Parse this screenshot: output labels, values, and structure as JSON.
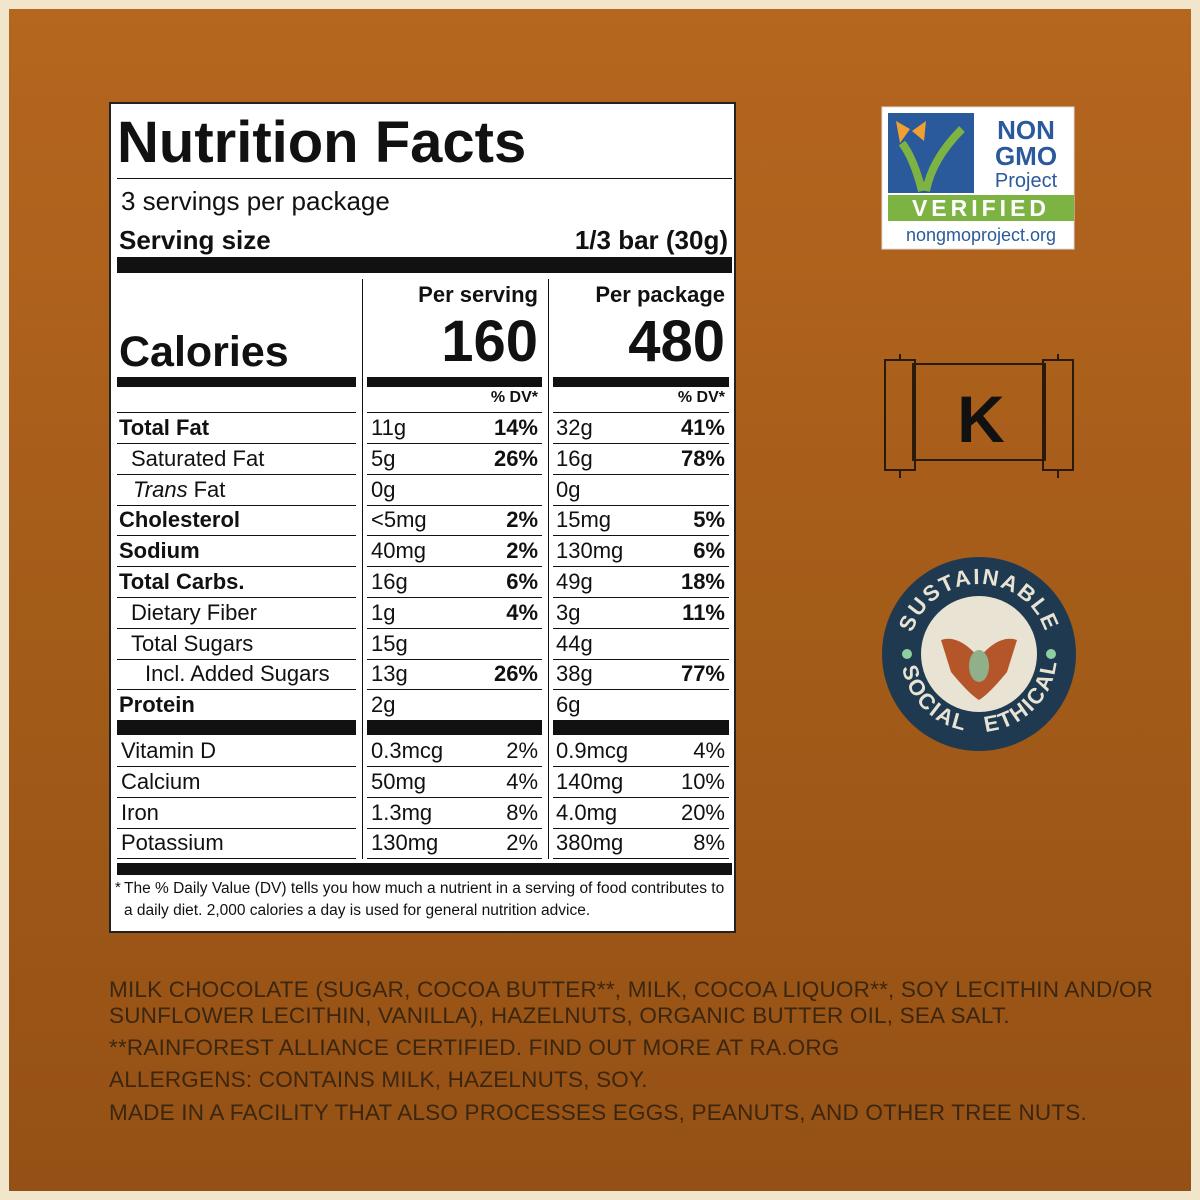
{
  "label": {
    "title": "Nutrition Facts",
    "servings": "3 servings per package",
    "serving_size_label": "Serving size",
    "serving_size_value": "1/3 bar (30g)",
    "per_serving": "Per serving",
    "per_package": "Per package",
    "calories_label": "Calories",
    "calories_serving": "160",
    "calories_package": "480",
    "dv_header_serving": "% DV*",
    "dv_header_package": "% DV*",
    "nutrients": [
      {
        "name": "Total Fat",
        "serving": "11g",
        "serving_dv": "14%",
        "package": "32g",
        "package_dv": "41%"
      },
      {
        "name": "Saturated Fat",
        "serving": "5g",
        "serving_dv": "26%",
        "package": "16g",
        "package_dv": "78%"
      },
      {
        "name_italic": "Trans",
        "name": "Fat",
        "serving": "0g",
        "package": "0g"
      },
      {
        "name": "Cholesterol",
        "serving": "<5mg",
        "serving_dv": "2%",
        "package": "15mg",
        "package_dv": "5%"
      },
      {
        "name": "Sodium",
        "serving": "40mg",
        "serving_dv": "2%",
        "package": "130mg",
        "package_dv": "6%"
      },
      {
        "name": "Total Carbs.",
        "serving": "16g",
        "serving_dv": "6%",
        "package": "49g",
        "package_dv": "18%"
      },
      {
        "name": "Dietary Fiber",
        "serving": "1g",
        "serving_dv": "4%",
        "package": "3g",
        "package_dv": "11%"
      },
      {
        "name": "Total Sugars",
        "serving": "15g",
        "package": "44g"
      },
      {
        "name": "Incl. Added Sugars",
        "serving": "13g",
        "serving_dv": "26%",
        "package": "38g",
        "package_dv": "77%"
      },
      {
        "name": "Protein",
        "serving": "2g",
        "package": "6g"
      }
    ],
    "vitamins": [
      {
        "name": "Vitamin D",
        "serving": "0.3mcg",
        "serving_dv": "2%",
        "package": "0.9mcg",
        "package_dv": "4%"
      },
      {
        "name": "Calcium",
        "serving": "50mg",
        "serving_dv": "4%",
        "package": "140mg",
        "package_dv": "10%"
      },
      {
        "name": "Iron",
        "serving": "1.3mg",
        "serving_dv": "8%",
        "package": "4.0mg",
        "package_dv": "20%"
      },
      {
        "name": "Potassium",
        "serving": "130mg",
        "serving_dv": "2%",
        "package": "380mg",
        "package_dv": "8%"
      }
    ],
    "footnote_mark": "*",
    "footnote": "The % Daily Value (DV) tells you how much a nutrient in a serving of food contributes to a daily diet. 2,000 calories a day is used for general nutrition advice."
  },
  "ingredients": {
    "lines": [
      "MILK CHOCOLATE (SUGAR, COCOA BUTTER**, MILK, COCOA LIQUOR**, SOY LECITHIN AND/OR",
      "SUNFLOWER LECITHIN, VANILLA), HAZELNUTS, ORGANIC BUTTER OIL, SEA SALT."
    ],
    "certified": "**RAINFOREST ALLIANCE CERTIFIED. FIND OUT MORE AT RA.ORG",
    "allergens": "ALLERGENS: CONTAINS MILK, HAZELNUTS, SOY.",
    "facility": "MADE IN A FACILITY THAT ALSO PROCESSES EGGS, PEANUTS, AND OTHER TREE NUTS."
  },
  "badges": {
    "nongmo": {
      "line1": "NON",
      "line2": "GMO",
      "line3": "Project",
      "verified": "VERIFIED",
      "url": "nongmoproject.org"
    },
    "kosher": "K",
    "sustainable": {
      "top": "SUSTAINABLE",
      "left": "SOCIAL",
      "right": "ETHICAL"
    }
  }
}
